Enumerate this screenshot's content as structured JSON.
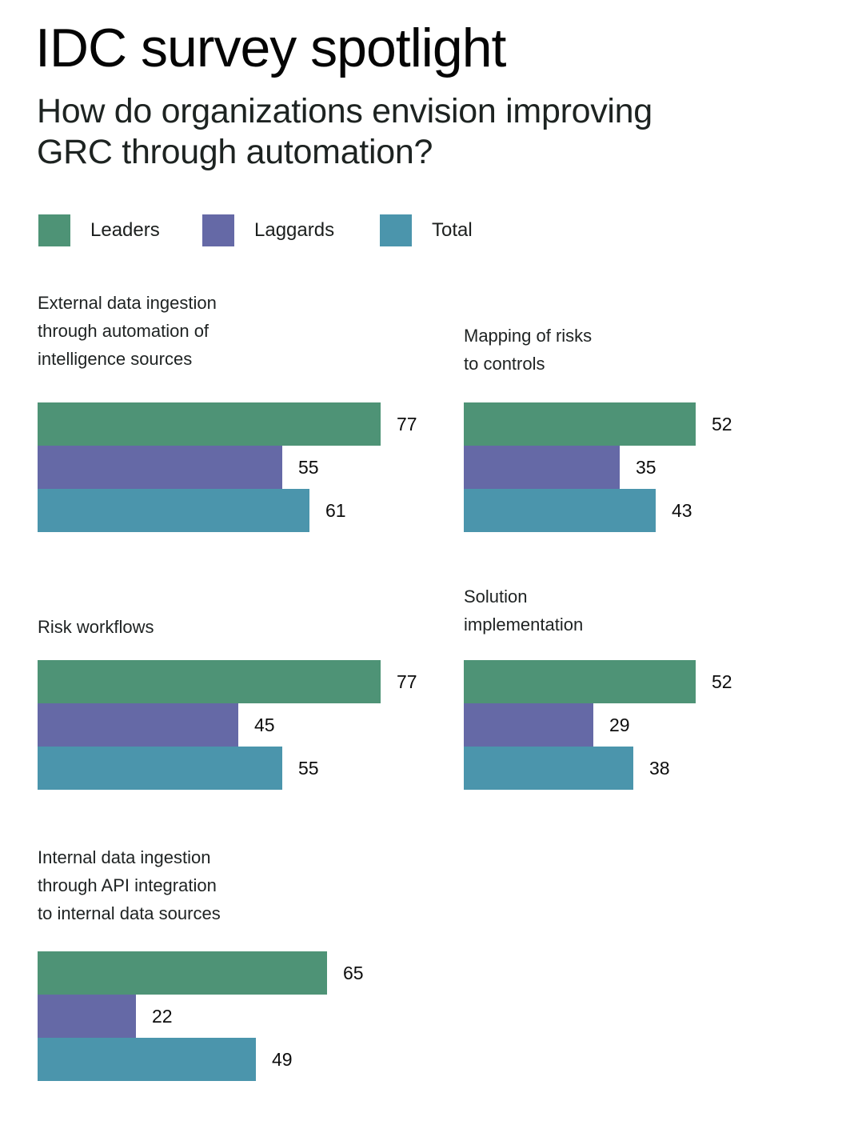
{
  "header": {
    "title": "IDC survey spotlight",
    "subtitle_lines": [
      "How do organizations envision improving",
      "GRC through automation?"
    ]
  },
  "legend": {
    "items": [
      {
        "label": "Leaders",
        "color": "#4e9376"
      },
      {
        "label": "Laggards",
        "color": "#6569a6"
      },
      {
        "label": "Total",
        "color": "#4b95ac"
      }
    ]
  },
  "chart_data": {
    "type": "bar",
    "orientation": "horizontal",
    "title": "How do organizations envision improving GRC through automation?",
    "series_names": [
      "Leaders",
      "Laggards",
      "Total"
    ],
    "series_colors": [
      "#4e9376",
      "#6569a6",
      "#4b95ac"
    ],
    "xlim": [
      0,
      100
    ],
    "grid": false,
    "legend_position": "top-left",
    "value_labels": "end-of-bar",
    "groups": [
      {
        "category": "External data ingestion through automation of intelligence sources",
        "label_lines": [
          "External data ingestion",
          "through automation of",
          "intelligence sources"
        ],
        "values": [
          77,
          55,
          61
        ]
      },
      {
        "category": "Mapping of risks to controls",
        "label_lines": [
          "Mapping of risks",
          "to controls"
        ],
        "values": [
          52,
          35,
          43
        ]
      },
      {
        "category": "Risk workflows",
        "label_lines": [
          "Risk workflows"
        ],
        "values": [
          77,
          45,
          55
        ]
      },
      {
        "category": "Solution implementation",
        "label_lines": [
          "Solution",
          "implementation"
        ],
        "values": [
          52,
          29,
          38
        ]
      },
      {
        "category": "Internal data ingestion through API integration to internal data sources",
        "label_lines": [
          "Internal data ingestion",
          "through API integration",
          "to internal data sources"
        ],
        "values": [
          65,
          22,
          49
        ]
      }
    ]
  }
}
